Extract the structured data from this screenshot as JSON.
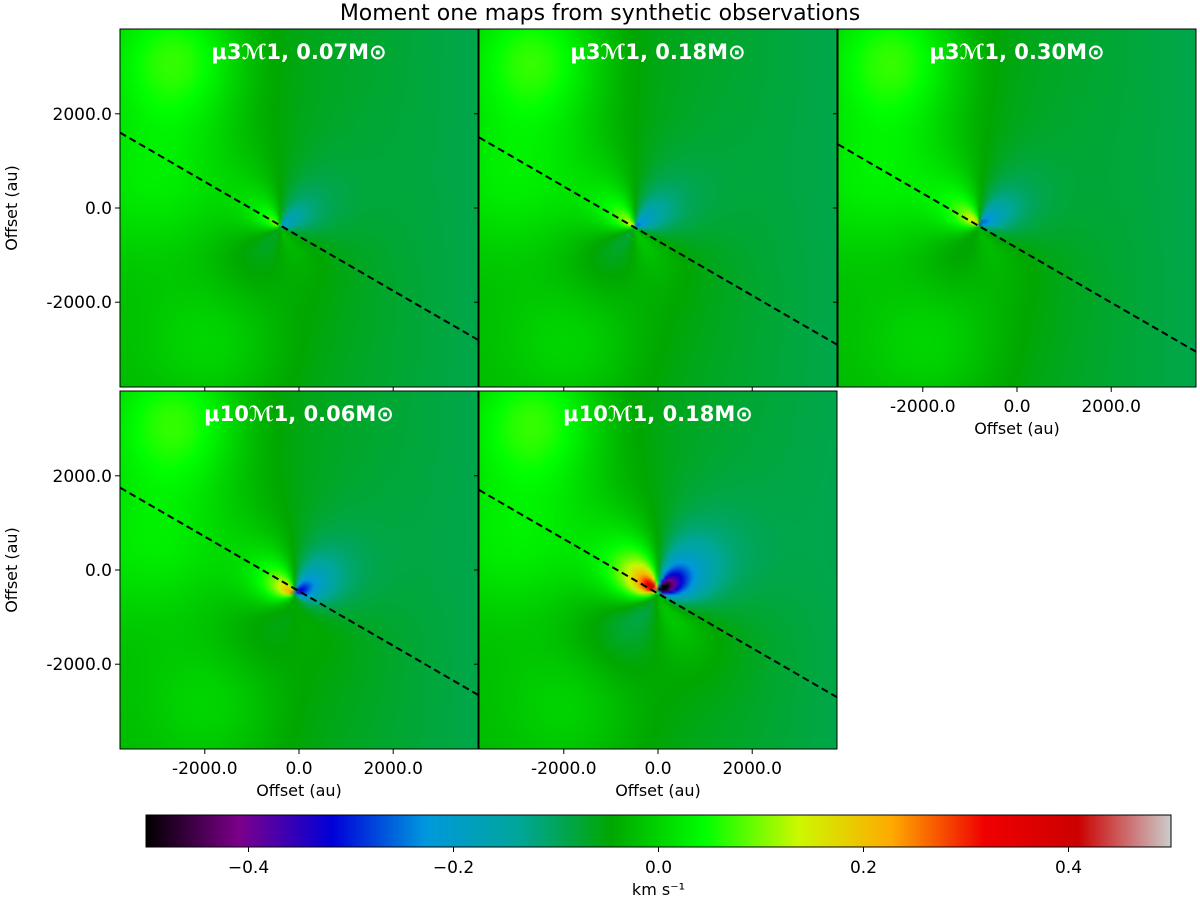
{
  "figure": {
    "title": "Moment one maps from synthetic observations"
  },
  "chart_data": {
    "type": "heatmap",
    "colormap": "nipy_spectral",
    "colors": {
      "stops": [
        "#000000",
        "#7c008a",
        "#0000d9",
        "#0098dd",
        "#00a69a",
        "#00a700",
        "#00ff00",
        "#ccf800",
        "#ffaa00",
        "#f00000",
        "#cc0000",
        "#cccccc"
      ],
      "dash_line": "#000000"
    },
    "colorbar": {
      "label": "km s⁻¹",
      "vmin": -0.5,
      "vmax": 0.5,
      "ticks": [
        -0.4,
        -0.2,
        0.0,
        0.2,
        0.4
      ],
      "tick_labels": [
        "−0.4",
        "−0.2",
        "0.0",
        "0.2",
        "0.4"
      ]
    },
    "axes": {
      "xlabel": "Offset (au)",
      "ylabel": "Offset (au)",
      "xlim": [
        -3800,
        3800
      ],
      "ylim": [
        -3800,
        3800
      ],
      "ticks": [
        -2000,
        0,
        2000
      ],
      "tick_labels": [
        "-2000.0",
        "0.0",
        "2000.0"
      ]
    },
    "panels": [
      {
        "id": "p1",
        "title": "μ3ℳ1, 0.07M⊙",
        "row": 0,
        "col": 0,
        "center": [
          -400,
          -400
        ],
        "outflow_strength": 0.15,
        "disk_strength": 0.12,
        "line": {
          "x1": -3800,
          "y1": 1600,
          "x2": 3800,
          "y2": -2800
        },
        "show_xticks": false,
        "show_yticks": true
      },
      {
        "id": "p2",
        "title": "μ3ℳ1, 0.18M⊙",
        "row": 0,
        "col": 1,
        "center": [
          -500,
          -400
        ],
        "outflow_strength": 0.2,
        "disk_strength": 0.15,
        "line": {
          "x1": -3800,
          "y1": 1500,
          "x2": 3800,
          "y2": -2900
        },
        "show_xticks": false,
        "show_yticks": false
      },
      {
        "id": "p3",
        "title": "μ3ℳ1, 0.30M⊙",
        "row": 0,
        "col": 2,
        "center": [
          -800,
          -350
        ],
        "outflow_strength": 0.18,
        "disk_strength": 0.2,
        "line": {
          "x1": -3800,
          "y1": 1350,
          "x2": 3800,
          "y2": -3050
        },
        "show_xticks": true,
        "show_yticks": false
      },
      {
        "id": "p4",
        "title": "μ10ℳ1, 0.06M⊙",
        "row": 1,
        "col": 0,
        "center": [
          -100,
          -500
        ],
        "outflow_strength": 0.2,
        "disk_strength": 0.3,
        "line": {
          "x1": -3800,
          "y1": 1750,
          "x2": 3800,
          "y2": -2650
        },
        "show_xticks": true,
        "show_yticks": true
      },
      {
        "id": "p5",
        "title": "μ10ℳ1, 0.18M⊙",
        "row": 1,
        "col": 1,
        "center": [
          0,
          -450
        ],
        "outflow_strength": 0.42,
        "disk_strength": 0.48,
        "line": {
          "x1": -3800,
          "y1": 1700,
          "x2": 3800,
          "y2": -2700
        },
        "show_xticks": true,
        "show_yticks": false
      }
    ]
  }
}
